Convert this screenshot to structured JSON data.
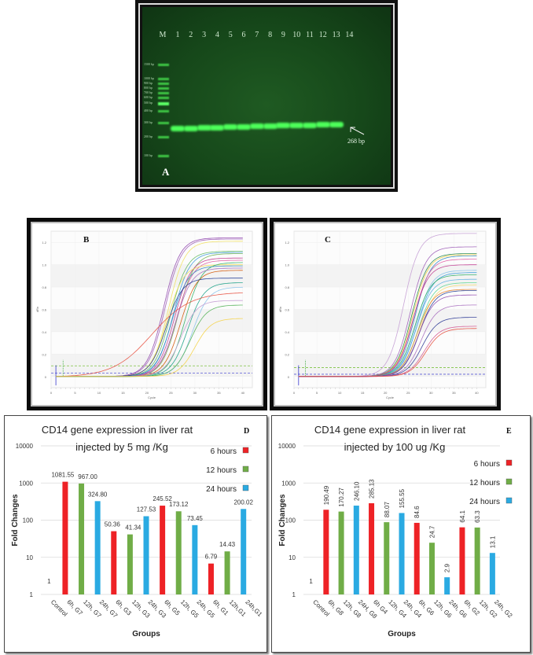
{
  "figure": {
    "gel": {
      "panel_label": "A",
      "marker_label": "M",
      "lane_labels": [
        "1",
        "2",
        "3",
        "4",
        "5",
        "6",
        "7",
        "8",
        "9",
        "10",
        "11",
        "12",
        "13",
        "14"
      ],
      "ladder_labels": [
        "1500 bp",
        "1000 bp",
        "900 bp",
        "800 bp",
        "700 bp",
        "600 bp",
        "500 bp",
        "400 bp",
        "300 bp",
        "200 bp",
        "100 bp"
      ],
      "band_annotation": "268 bp",
      "lanes_with_band": [
        1,
        2,
        3,
        4,
        5,
        6,
        7,
        8,
        9,
        10,
        11,
        12,
        13
      ]
    },
    "colors": {
      "six_hours": "#ee2226",
      "twelve_hours": "#70ad47",
      "twenty_four_hours": "#2aaae2",
      "gel_bg": "#16481a",
      "band": "#4dff5a"
    }
  },
  "chart_data": [
    {
      "id": "B",
      "type": "line",
      "title": "",
      "panel_label": "B",
      "xlabel": "Cycle",
      "ylabel": "dRn",
      "xlim": [
        0,
        42
      ],
      "ylim": [
        -0.1,
        1.3
      ],
      "xticks": [
        "0",
        "5",
        "10",
        "15",
        "20",
        "25",
        "30",
        "35",
        "40"
      ],
      "yticks": [
        "0",
        "0.2",
        "0.4",
        "0.6",
        "0.8",
        "1.0",
        "1.2"
      ],
      "thresholds": [
        0.095,
        0.03
      ],
      "grid": true,
      "series": [
        {
          "color": "#8e44ad",
          "ct": 23.5,
          "plateau": 1.24
        },
        {
          "color": "#9b59b6",
          "ct": 23.8,
          "plateau": 1.23
        },
        {
          "color": "#f1e05a",
          "ct": 24.5,
          "plateau": 1.21
        },
        {
          "color": "#5cb85c",
          "ct": 25.0,
          "plateau": 1.12
        },
        {
          "color": "#3a9ad9",
          "ct": 25.5,
          "plateau": 1.11
        },
        {
          "color": "#6ab04c",
          "ct": 26.5,
          "plateau": 1.1
        },
        {
          "color": "#c0398f",
          "ct": 25.8,
          "plateau": 1.06
        },
        {
          "color": "#e056a0",
          "ct": 26.2,
          "plateau": 1.04
        },
        {
          "color": "#f5de50",
          "ct": 24.2,
          "plateau": 1.0
        },
        {
          "color": "#2e86c1",
          "ct": 25.2,
          "plateau": 0.99
        },
        {
          "color": "#27ae60",
          "ct": 28.0,
          "plateau": 1.02
        },
        {
          "color": "#a569bd",
          "ct": 26.0,
          "plateau": 0.97
        },
        {
          "color": "#d35400",
          "ct": 27.0,
          "plateau": 0.95
        },
        {
          "color": "#1f3a93",
          "ct": 24.0,
          "plateau": 0.88
        },
        {
          "color": "#16a085",
          "ct": 28.5,
          "plateau": 0.84
        },
        {
          "color": "#85c1e9",
          "ct": 29.5,
          "plateau": 0.8
        },
        {
          "color": "#e74c3c",
          "ct": 21.0,
          "plateau": 0.76,
          "slope": 4.0
        },
        {
          "color": "#c39bd3",
          "ct": 27.0,
          "plateau": 0.68
        },
        {
          "color": "#4caf50",
          "ct": 29.0,
          "plateau": 0.64
        },
        {
          "color": "#f4d03f",
          "ct": 30.0,
          "plateau": 0.52
        }
      ]
    },
    {
      "id": "C",
      "type": "line",
      "title": "",
      "panel_label": "C",
      "xlabel": "Cycle",
      "ylabel": "dRn",
      "xlim": [
        0,
        42
      ],
      "ylim": [
        -0.1,
        1.3
      ],
      "xticks": [
        "0",
        "5",
        "10",
        "15",
        "20",
        "25",
        "30",
        "35",
        "40"
      ],
      "yticks": [
        "0",
        "0.2",
        "0.4",
        "0.6",
        "0.8",
        "1.0",
        "1.2"
      ],
      "thresholds": [
        0.08,
        0.02
      ],
      "grid": true,
      "series": [
        {
          "color": "#c39bd3",
          "ct": 24.0,
          "plateau": 1.28
        },
        {
          "color": "#9b59b6",
          "ct": 25.5,
          "plateau": 1.16
        },
        {
          "color": "#1e8449",
          "ct": 25.8,
          "plateau": 1.1
        },
        {
          "color": "#f4d03f",
          "ct": 26.0,
          "plateau": 1.09
        },
        {
          "color": "#2e86c1",
          "ct": 26.5,
          "plateau": 1.08
        },
        {
          "color": "#e056a0",
          "ct": 26.2,
          "plateau": 1.05
        },
        {
          "color": "#c0398f",
          "ct": 26.0,
          "plateau": 1.0
        },
        {
          "color": "#85c1e9",
          "ct": 26.8,
          "plateau": 0.95
        },
        {
          "color": "#3498db",
          "ct": 27.0,
          "plateau": 0.93
        },
        {
          "color": "#27ae60",
          "ct": 26.5,
          "plateau": 0.91
        },
        {
          "color": "#5dade2",
          "ct": 26.8,
          "plateau": 0.87
        },
        {
          "color": "#58d68d",
          "ct": 27.2,
          "plateau": 0.84
        },
        {
          "color": "#f7dc6f",
          "ct": 27.5,
          "plateau": 0.82
        },
        {
          "color": "#e67e22",
          "ct": 27.0,
          "plateau": 0.78
        },
        {
          "color": "#1f3a93",
          "ct": 27.4,
          "plateau": 0.77
        },
        {
          "color": "#8e44ad",
          "ct": 27.2,
          "plateau": 0.73
        },
        {
          "color": "#a569bd",
          "ct": 27.8,
          "plateau": 0.64
        },
        {
          "color": "#283593",
          "ct": 28.0,
          "plateau": 0.53
        },
        {
          "color": "#d35490",
          "ct": 28.5,
          "plateau": 0.45
        },
        {
          "color": "#e74c3c",
          "ct": 28.8,
          "plateau": 0.43
        }
      ]
    },
    {
      "id": "D",
      "type": "bar",
      "panel_label": "D",
      "title": "CD14 gene expression in liver rat",
      "subtitle": "injected by 5 mg /Kg",
      "xlabel": "Groups",
      "ylabel": "Fold Changes",
      "yscale": "log",
      "ylim": [
        1,
        10000
      ],
      "yticks": [
        "1",
        "10",
        "100",
        "1000",
        "10000"
      ],
      "grid": true,
      "legend": {
        "placement": "top-right",
        "entries": [
          "6 hours",
          "12 hours",
          "24 hours"
        ]
      },
      "categories": [
        "Control",
        "6h, G7",
        "12h, G7",
        "24h, G7",
        "6h, G3",
        "12h, G3",
        "24h, G3",
        "6h, G5",
        "12h, G5",
        "24h, G5",
        "6h, G1",
        "12h,G1",
        "24h,G1"
      ],
      "series_index": [
        null,
        0,
        1,
        2,
        0,
        1,
        2,
        0,
        1,
        2,
        0,
        1,
        2
      ],
      "values": [
        1,
        1081.55,
        967.0,
        324.8,
        50.36,
        41.34,
        127.53,
        245.52,
        173.12,
        73.45,
        6.79,
        14.43,
        200.02
      ],
      "labels": [
        "1",
        "1081.55",
        "967.00",
        "324.80",
        "50.36",
        "41.34",
        "127.53",
        "245.52",
        "173.12",
        "73.45",
        "6.79",
        "14.43",
        "200.02"
      ],
      "label_orientation": "horizontal"
    },
    {
      "id": "E",
      "type": "bar",
      "panel_label": "E",
      "title": "CD14 gene expression in liver rat",
      "subtitle": "injected by 100 ug /Kg",
      "xlabel": "Groups",
      "ylabel": "Fold Changes",
      "yscale": "log",
      "ylim": [
        1,
        10000
      ],
      "yticks": [
        "1",
        "10",
        "100",
        "1000",
        "10000"
      ],
      "grid": true,
      "legend": {
        "placement": "top-right",
        "entries": [
          "6 hours",
          "12 hours",
          "24 hours"
        ]
      },
      "categories": [
        "Control",
        "6h, G8",
        "12h, G8",
        "24H, G8",
        "6h G4",
        "12h, G4",
        "24h, G4",
        "6h, G6",
        "12h, G6",
        "24h, G6",
        "6h, G2",
        "12h, G2",
        "24h, G2"
      ],
      "series_index": [
        null,
        0,
        1,
        2,
        0,
        1,
        2,
        0,
        1,
        2,
        0,
        1,
        2
      ],
      "values": [
        1,
        190.49,
        170.27,
        246.1,
        285.13,
        88.07,
        155.55,
        84.6,
        24.7,
        2.9,
        64.1,
        63.3,
        13.1
      ],
      "labels": [
        "1",
        "190.49",
        "170.27",
        "246.10",
        "285.13",
        "88.07",
        "155.55",
        "84.6",
        "24.7",
        "2.9",
        "64.1",
        "63.3",
        "13.1"
      ],
      "label_orientation": "vertical"
    }
  ]
}
